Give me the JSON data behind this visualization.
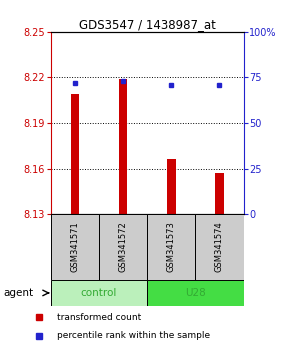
{
  "title": "GDS3547 / 1438987_at",
  "samples": [
    "GSM341571",
    "GSM341572",
    "GSM341573",
    "GSM341574"
  ],
  "bar_values": [
    8.209,
    8.219,
    8.166,
    8.157
  ],
  "bar_base": 8.13,
  "percentile_values": [
    72,
    73,
    71,
    71
  ],
  "percentile_scale_min": 0,
  "percentile_scale_max": 100,
  "ylim_min": 8.13,
  "ylim_max": 8.25,
  "yticks": [
    8.13,
    8.16,
    8.19,
    8.22,
    8.25
  ],
  "ytick_labels": [
    "8.13",
    "8.16",
    "8.19",
    "8.22",
    "8.25"
  ],
  "right_yticks": [
    0,
    25,
    50,
    75,
    100
  ],
  "right_ytick_labels": [
    "0",
    "25",
    "50",
    "75",
    "100%"
  ],
  "bar_color": "#cc0000",
  "dot_color": "#2222cc",
  "control_color": "#bbf0bb",
  "u28_color": "#44dd44",
  "group_label_color": "#33aa33",
  "sample_box_color": "#cccccc",
  "left_axis_color": "#cc0000",
  "right_axis_color": "#2222cc",
  "agent_label": "agent",
  "group_info": [
    {
      "name": "control",
      "span": [
        0,
        1
      ],
      "color": "#bbf0bb"
    },
    {
      "name": "U28",
      "span": [
        2,
        3
      ],
      "color": "#44dd44"
    }
  ],
  "legend_bar_label": "transformed count",
  "legend_dot_label": "percentile rank within the sample"
}
